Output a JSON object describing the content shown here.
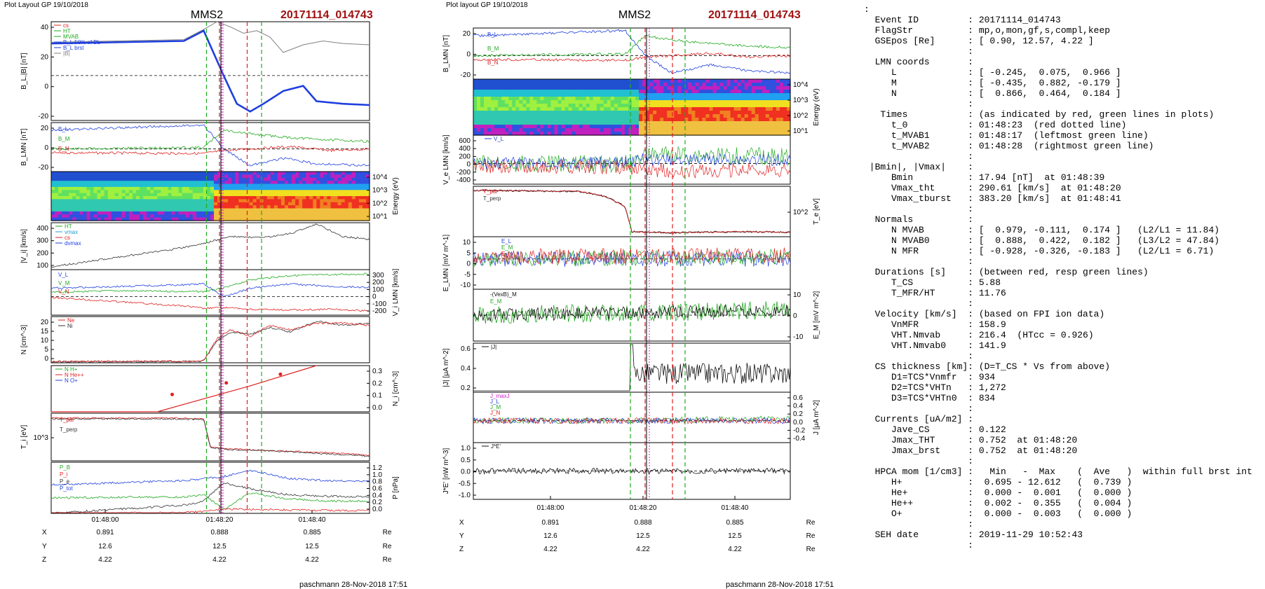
{
  "left_figure": {
    "header": "Plot Layout GP 19/10/2018",
    "spacecraft": "MMS2",
    "event": "20171114_014743",
    "footer": "paschmann 28-Nov-2018 17:51",
    "time_ticks": [
      "01:48:00",
      "01:48:20",
      "01:48:40"
    ],
    "coords": [
      {
        "name": "X",
        "values": [
          "0.891",
          "0.888",
          "0.885"
        ],
        "unit": "Re"
      },
      {
        "name": "Y",
        "values": [
          "12.6",
          "12.5",
          "12.5"
        ],
        "unit": "Re"
      },
      {
        "name": "Z",
        "values": [
          "4.22",
          "4.22",
          "4.22"
        ],
        "unit": "Re"
      }
    ]
  },
  "right_figure": {
    "header": "Plot layout GP 19/10/2018",
    "spacecraft": "MMS2",
    "event": "20171114_014743",
    "footer": "paschmann 28-Nov-2018 17:51",
    "time_ticks": [
      "01:48:00",
      "01:48:20",
      "01:48:40"
    ],
    "coords": [
      {
        "name": "X",
        "values": [
          "0.891",
          "0.888",
          "0.885"
        ],
        "unit": "Re"
      },
      {
        "name": "Y",
        "values": [
          "12.6",
          "12.5",
          "12.5"
        ],
        "unit": "Re"
      },
      {
        "name": "Z",
        "values": [
          "4.22",
          "4.22",
          "4.22"
        ],
        "unit": "Re"
      }
    ]
  },
  "colors": {
    "red_line": "#e02020",
    "green_line": "#22aa22",
    "blue": "#1f3fdf",
    "magenta": "#cc22cc",
    "title_red": "#a01010"
  },
  "chart_data": [
    {
      "type": "line",
      "figure": "left",
      "ylabel": "B_L,|B| [nT]",
      "yticks": [
        "40",
        "20",
        "0",
        "-20"
      ],
      "ylim": [
        -35,
        42
      ],
      "legend": [
        "cs",
        "HT",
        "MVAB",
        "B_L 50% of BL",
        "B_L brst",
        "|B|"
      ],
      "series": [
        {
          "name": "B_L brst",
          "color": "#1f3fdf",
          "x": [
            0,
            20,
            23,
            26,
            28,
            30,
            32,
            35,
            38,
            40,
            44,
            48
          ],
          "y": [
            25,
            27,
            35,
            0,
            -22,
            -28,
            -22,
            -12,
            -8,
            -20,
            -22,
            -23
          ]
        },
        {
          "name": "|B|",
          "color": "#808080",
          "x": [
            0,
            20,
            23,
            25,
            27,
            29,
            31,
            33,
            35,
            38,
            41,
            44,
            48
          ],
          "y": [
            26,
            28,
            36,
            42,
            38,
            33,
            35,
            30,
            18,
            24,
            27,
            25,
            24
          ]
        }
      ]
    },
    {
      "type": "line",
      "figure": "left",
      "ylabel": "B_LMN [nT]",
      "yticks": [
        "20",
        "0",
        "-20"
      ],
      "ylim": [
        -30,
        35
      ],
      "legend": [
        "B_L",
        "B_M",
        "B_N"
      ],
      "series": [
        {
          "name": "B_L",
          "color": "#1f3fdf",
          "x": [
            0,
            23,
            26,
            30,
            35,
            40,
            48
          ],
          "y": [
            25,
            32,
            0,
            -22,
            -12,
            -20,
            -22
          ]
        },
        {
          "name": "B_M",
          "color": "#22aa22",
          "x": [
            0,
            23,
            26,
            30,
            36,
            42,
            48
          ],
          "y": [
            0,
            2,
            25,
            20,
            15,
            12,
            10
          ]
        },
        {
          "name": "B_N",
          "color": "#e02020",
          "x": [
            0,
            23,
            26,
            30,
            36,
            42,
            48
          ],
          "y": [
            -5,
            -6,
            -2,
            0,
            3,
            -2,
            0
          ]
        }
      ]
    },
    {
      "type": "heatmap",
      "figure": "left",
      "ylabel": "Energy (eV)",
      "yticks": [
        "10^4",
        "10^3",
        "10^2",
        "10^1"
      ]
    },
    {
      "type": "line",
      "figure": "left",
      "ylabel": "|V_i| [km/s]",
      "yticks": [
        "400",
        "300",
        "200",
        "100"
      ],
      "ylim": [
        60,
        400
      ],
      "legend": [
        "HT",
        "vmax",
        "cs",
        "dvmax"
      ],
      "series": [
        {
          "name": "|V_i|",
          "color": "#333333",
          "x": [
            0,
            10,
            20,
            23,
            27,
            32,
            36,
            40,
            44,
            48
          ],
          "y": [
            80,
            150,
            220,
            250,
            300,
            290,
            320,
            390,
            300,
            280
          ]
        }
      ]
    },
    {
      "type": "line",
      "figure": "left",
      "ylabel": "V_i LMN [km/s]",
      "yticks": [
        "300",
        "200",
        "100",
        "0",
        "-100",
        "-200"
      ],
      "ylim": [
        -220,
        320
      ],
      "legend": [
        "V_L",
        "V_M",
        "V_N"
      ],
      "series": [
        {
          "name": "V_L",
          "color": "#1f3fdf",
          "x": [
            0,
            10,
            20,
            23,
            26,
            30,
            36,
            42,
            48
          ],
          "y": [
            100,
            120,
            140,
            150,
            0,
            100,
            150,
            120,
            110
          ]
        },
        {
          "name": "V_M",
          "color": "#22aa22",
          "x": [
            0,
            10,
            20,
            23,
            26,
            30,
            36,
            42,
            48
          ],
          "y": [
            50,
            70,
            60,
            60,
            100,
            200,
            250,
            260,
            270
          ]
        },
        {
          "name": "V_N",
          "color": "#e02020",
          "x": [
            0,
            10,
            20,
            23,
            26,
            30,
            36,
            42,
            48
          ],
          "y": [
            -10,
            -60,
            -110,
            -140,
            -130,
            -150,
            -160,
            -150,
            -170
          ]
        }
      ]
    },
    {
      "type": "line",
      "figure": "left",
      "ylabel": "N [cm^-3]",
      "yticks": [
        "20",
        "15",
        "10",
        "5",
        "0"
      ],
      "ylim": [
        0,
        21
      ],
      "legend": [
        "Ne",
        "Ni"
      ],
      "series": [
        {
          "name": "Ni",
          "color": "#333333",
          "x": [
            0,
            20,
            23,
            25,
            27,
            30,
            33,
            36,
            40,
            44,
            48
          ],
          "y": [
            0.5,
            0.6,
            0.8,
            10,
            14,
            13,
            16,
            14,
            19,
            17,
            18
          ]
        },
        {
          "name": "Ne",
          "color": "#e02020",
          "x": [
            0,
            20,
            23,
            25,
            27,
            30,
            33,
            36,
            40,
            44,
            48
          ],
          "y": [
            0.6,
            0.7,
            0.9,
            11,
            15,
            12,
            17,
            15,
            18,
            18,
            17
          ]
        }
      ]
    },
    {
      "type": "line",
      "figure": "left",
      "ylabel": "N_i [cm^-3]",
      "yticks": [
        "0.3",
        "0.2",
        "0.1",
        "0.0"
      ],
      "ylim": [
        0,
        0.32
      ],
      "legend": [
        "N H+",
        "N He++",
        "N O+"
      ],
      "series": [
        {
          "name": "N He++",
          "color": "#e02020",
          "x": [
            0,
            16,
            30,
            40
          ],
          "y": [
            0,
            0,
            0.18,
            0.33
          ]
        }
      ]
    },
    {
      "type": "line",
      "figure": "left",
      "ylabel": "T_i [eV]",
      "yticks": [
        "10^3"
      ],
      "legend": [
        "T_par",
        "T_perp"
      ],
      "series": [
        {
          "name": "T_par",
          "color": "#e02020",
          "x": [
            0,
            20,
            23,
            24,
            27,
            32,
            40,
            48
          ],
          "y": [
            90,
            90,
            88,
            30,
            25,
            22,
            18,
            12
          ]
        },
        {
          "name": "T_perp",
          "color": "#333333",
          "x": [
            0,
            20,
            23,
            24,
            27,
            32,
            40,
            48
          ],
          "y": [
            88,
            88,
            86,
            28,
            23,
            22,
            16,
            10
          ]
        }
      ]
    },
    {
      "type": "line",
      "figure": "left",
      "ylabel": "P [nPa]",
      "yticks": [
        "1.2",
        "1.0",
        "0.8",
        "0.6",
        "0.4",
        "0.2",
        "0.0"
      ],
      "ylim": [
        0,
        1.25
      ],
      "legend": [
        "P_B",
        "P_i",
        "P_e",
        "P_tot"
      ],
      "series": [
        {
          "name": "P_tot",
          "color": "#1f3fdf",
          "x": [
            0,
            20,
            23,
            26,
            30,
            36,
            42,
            48
          ],
          "y": [
            0.7,
            0.8,
            0.85,
            0.9,
            1.05,
            0.85,
            0.8,
            0.78
          ]
        },
        {
          "name": "P_B",
          "color": "#22aa22",
          "x": [
            0,
            20,
            23,
            26,
            30,
            36,
            42,
            48
          ],
          "y": [
            0.38,
            0.4,
            0.45,
            0.1,
            0.5,
            0.35,
            0.3,
            0.3
          ]
        },
        {
          "name": "P_i",
          "color": "#333333",
          "x": [
            0,
            20,
            23,
            26,
            30,
            36,
            42,
            48
          ],
          "y": [
            0,
            0.2,
            0.3,
            0.75,
            0.6,
            0.45,
            0.42,
            0.4
          ]
        },
        {
          "name": "P_e",
          "color": "#e02020",
          "x": [
            0,
            20,
            23,
            26,
            30,
            36,
            42,
            48
          ],
          "y": [
            0,
            0.02,
            0.04,
            0.1,
            0.1,
            0.08,
            0.07,
            0.07
          ]
        }
      ]
    },
    {
      "type": "line",
      "figure": "right",
      "ylabel": "B_LMN [nT]",
      "yticks": [
        "20",
        "0",
        "-20"
      ],
      "ylim": [
        -30,
        35
      ],
      "legend": [
        "B_L",
        "B_M",
        "B_N"
      ],
      "series": [
        {
          "name": "B_L",
          "color": "#1f3fdf",
          "x": [
            0,
            23,
            26,
            30,
            36,
            42,
            48
          ],
          "y": [
            25,
            32,
            0,
            -22,
            -12,
            -20,
            -22
          ]
        },
        {
          "name": "B_M",
          "color": "#22aa22",
          "x": [
            0,
            23,
            26,
            30,
            36,
            42,
            48
          ],
          "y": [
            0,
            2,
            25,
            20,
            15,
            12,
            10
          ]
        },
        {
          "name": "B_N",
          "color": "#e02020",
          "x": [
            0,
            23,
            26,
            30,
            36,
            42,
            48
          ],
          "y": [
            -5,
            -6,
            -2,
            0,
            3,
            -2,
            0
          ]
        }
      ]
    },
    {
      "type": "heatmap",
      "figure": "right",
      "ylabel": "Energy (eV)",
      "yticks": [
        "10^4",
        "10^3",
        "10^2",
        "10^1"
      ]
    },
    {
      "type": "line",
      "figure": "right",
      "ylabel": "V_e LMN [km/s]",
      "yticks": [
        "600",
        "400",
        "200",
        "0",
        "-200",
        "-400"
      ],
      "ylim": [
        -450,
        620
      ],
      "legend": [
        "V_L"
      ]
    },
    {
      "type": "line",
      "figure": "right",
      "ylabel": "T_e [eV]",
      "yticks": [
        "10^2"
      ],
      "legend": [
        "T_par",
        "T_perp"
      ],
      "series": [
        {
          "name": "T_perp",
          "color": "#333333",
          "x": [
            0,
            16,
            20,
            23,
            24,
            30,
            40,
            48
          ],
          "y": [
            92,
            90,
            80,
            60,
            10,
            8,
            10,
            9
          ]
        }
      ]
    },
    {
      "type": "line",
      "figure": "right",
      "ylabel": "E_LMN [mV m^-1]",
      "yticks": [
        "10",
        "5",
        "0",
        "-5",
        "-10"
      ],
      "ylim": [
        -15,
        11
      ],
      "legend": [
        "E_L",
        "E_M",
        "E_N"
      ]
    },
    {
      "type": "line",
      "figure": "right",
      "ylabel": "E_M [mV m^-2]",
      "yticks": [
        "10",
        "0",
        "-10"
      ],
      "ylim": [
        -15,
        15
      ],
      "legend": [
        "-(VexB)_M",
        "E_M"
      ]
    },
    {
      "type": "line",
      "figure": "right",
      "ylabel": "|J| [μA m^-2]",
      "yticks": [
        "0.6",
        "0.4",
        "0.2"
      ],
      "ylim": [
        0,
        0.7
      ],
      "legend": [
        "|J|"
      ]
    },
    {
      "type": "line",
      "figure": "right",
      "ylabel": "J [μA m^-2]",
      "yticks": [
        "0.6",
        "0.4",
        "0.2",
        "0.0",
        "-0.2",
        "-0.4"
      ],
      "ylim": [
        -0.5,
        0.65
      ],
      "legend": [
        "J_maxJ",
        "J_L",
        "J_M",
        "J_N"
      ]
    },
    {
      "type": "line",
      "figure": "right",
      "ylabel": "J*E' [nW m^-3]",
      "yticks": [
        "1.0",
        "0.5",
        "0.0",
        "-0.5",
        "-1.0"
      ],
      "ylim": [
        -1.05,
        1.05
      ],
      "legend": [
        "J*E'"
      ]
    }
  ],
  "info_panel": {
    "lines": [
      ":",
      "  Event ID         : 20171114_014743",
      "  FlagStr          : mp,o,mon,gf,s,compl,keep",
      "  GSEpos [Re]      : [ 0.90, 12.57, 4.22 ]",
      "                   :",
      "  LMN coords       :",
      "     L             : [ -0.245,  0.075,  0.966 ]",
      "     M             : [ -0.435,  0.882, -0.179 ]",
      "     N             : [  0.866,  0.464,  0.184 ]",
      "                   :",
      "   Times           : (as indicated by red, green lines in plots)",
      "     t_0           : 01:48:23  (red dotted line)",
      "     t_MVAB1       : 01:48:17  (leftmost green line)",
      "     t_MVAB2       : 01:48:28  (rightmost green line)",
      "                   :",
      " |Bmin|, |Vmax|    :",
      "     Bmin          : 17.94 [nT]  at 01:48:39",
      "     Vmax_tht      : 290.61 [km/s]  at 01:48:20",
      "     Vmax_tburst   : 383.20 [km/s]  at 01:48:41",
      "                   :",
      "  Normals          :",
      "     N MVAB        : [  0.979, -0.111,  0.174 ]   (L2/L1 = 11.84)",
      "     N MVAB0       : [  0.888,  0.422,  0.182 ]   (L3/L2 = 47.84)",
      "     N MFR         : [ -0.928, -0.326, -0.183 ]   (L2/L1 = 6.71)",
      "                   :",
      "  Durations [s]    : (between red, resp green lines)",
      "     T_CS          : 5.88",
      "     T_MFR/HT      : 11.76",
      "                   :",
      "  Velocity [km/s]  : (based on FPI ion data)",
      "     VnMFR         : 158.9",
      "     VHT.Nmvab     : 216.4  (HTcc = 0.926)",
      "     VHT.Nmvab0    : 141.9",
      "                   :",
      "  CS thickness [km]: (D=T_CS * Vs from above)",
      "     D1=TCS*Vnmfr  : 934",
      "     D2=TCS*VHTn   : 1,272",
      "     D3=TCS*VHTn0  : 834",
      "                   :",
      "  Currents [uA/m2] :",
      "     Jave_CS       : 0.122",
      "     Jmax_THT      : 0.752  at 01:48:20",
      "     Jmax_brst     : 0.752  at 01:48:20",
      "                   :",
      "  HPCA mom [1/cm3] :   Min   -  Max    (  Ave   )  within full brst int",
      "     H+            :  0.695 - 12.612   (  0.739 )",
      "     He+           :  0.000 -  0.001   (  0.000 )",
      "     He++          :  0.002 -  0.355   (  0.004 )",
      "     O+            :  0.000 -  0.003   (  0.000 )",
      "                   :",
      "  SEH date         : 2019-11-29 10:52:43",
      "                   :"
    ]
  }
}
